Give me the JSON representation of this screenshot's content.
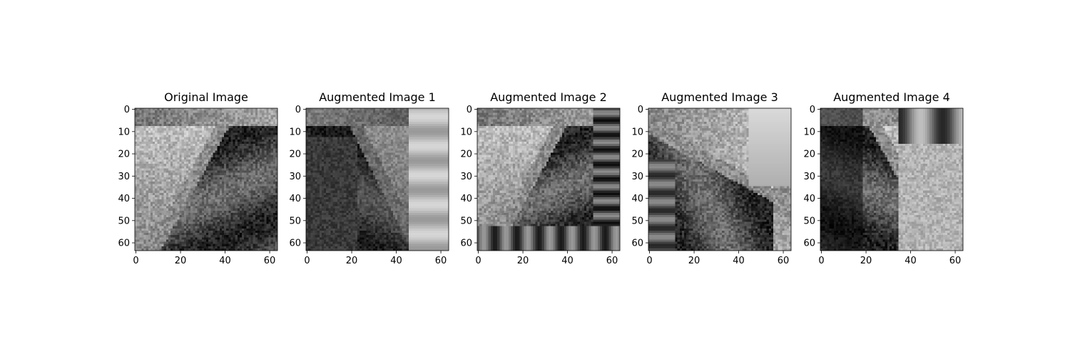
{
  "chart_data": [
    {
      "type": "heatmap",
      "title": "Original Image",
      "colormap": "gray",
      "xlim": [
        -0.5,
        63.5
      ],
      "ylim": [
        63.5,
        -0.5
      ],
      "xticks": [
        0,
        20,
        40,
        60
      ],
      "yticks": [
        0,
        10,
        20,
        30,
        40,
        50,
        60
      ],
      "grid": false,
      "variant": "original"
    },
    {
      "type": "heatmap",
      "title": "Augmented Image 1",
      "colormap": "gray",
      "xlim": [
        -0.5,
        63.5
      ],
      "ylim": [
        63.5,
        -0.5
      ],
      "xticks": [
        0,
        20,
        40,
        60
      ],
      "yticks": [
        0,
        10,
        20,
        30,
        40,
        50,
        60
      ],
      "grid": false,
      "variant": "aug1"
    },
    {
      "type": "heatmap",
      "title": "Augmented Image 2",
      "colormap": "gray",
      "xlim": [
        -0.5,
        63.5
      ],
      "ylim": [
        63.5,
        -0.5
      ],
      "xticks": [
        0,
        20,
        40,
        60
      ],
      "yticks": [
        0,
        10,
        20,
        30,
        40,
        50,
        60
      ],
      "grid": false,
      "variant": "aug2"
    },
    {
      "type": "heatmap",
      "title": "Augmented Image 3",
      "colormap": "gray",
      "xlim": [
        -0.5,
        63.5
      ],
      "ylim": [
        63.5,
        -0.5
      ],
      "xticks": [
        0,
        20,
        40,
        60
      ],
      "yticks": [
        0,
        10,
        20,
        30,
        40,
        50,
        60
      ],
      "grid": false,
      "variant": "aug3"
    },
    {
      "type": "heatmap",
      "title": "Augmented Image 4",
      "colormap": "gray",
      "xlim": [
        -0.5,
        63.5
      ],
      "ylim": [
        63.5,
        -0.5
      ],
      "xticks": [
        0,
        20,
        40,
        60
      ],
      "yticks": [
        0,
        10,
        20,
        30,
        40,
        50,
        60
      ],
      "grid": false,
      "variant": "aug4"
    }
  ]
}
